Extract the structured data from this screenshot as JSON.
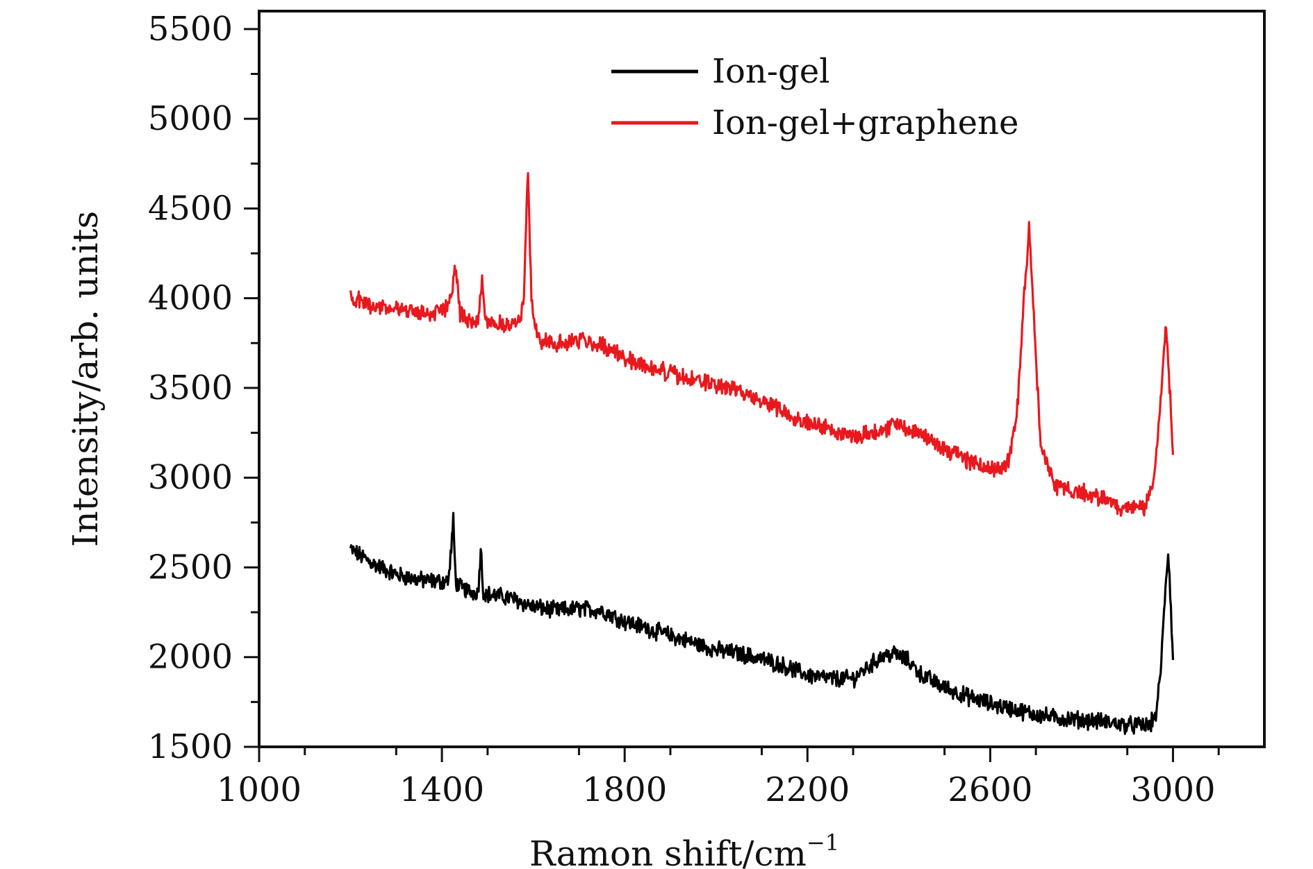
{
  "chart_data": {
    "type": "line",
    "title": "",
    "xlabel": "Ramon shift/cm",
    "xlabel_superscript": "−1",
    "ylabel": "Intensity/arb. units",
    "xlim": [
      1000,
      3200
    ],
    "ylim": [
      1500,
      5600
    ],
    "x_ticks": [
      1000,
      1400,
      1800,
      2200,
      2600,
      3000
    ],
    "y_ticks": [
      1500,
      2000,
      2500,
      3000,
      3500,
      4000,
      4500,
      5000,
      5500
    ],
    "grid": false,
    "legend_position": "top-center",
    "series": [
      {
        "name": "Ion-gel",
        "color": "#000000",
        "x": [
          1200,
          1250,
          1300,
          1350,
          1400,
          1415,
          1425,
          1430,
          1435,
          1445,
          1470,
          1480,
          1485,
          1490,
          1500,
          1550,
          1600,
          1650,
          1700,
          1750,
          1800,
          1850,
          1900,
          1950,
          2000,
          2050,
          2100,
          2150,
          2200,
          2250,
          2300,
          2330,
          2360,
          2390,
          2420,
          2450,
          2500,
          2550,
          2600,
          2650,
          2700,
          2750,
          2800,
          2850,
          2900,
          2950,
          2965,
          2975,
          2985,
          2990,
          2995,
          3000
        ],
        "y": [
          2600,
          2520,
          2460,
          2430,
          2420,
          2430,
          2760,
          2430,
          2400,
          2380,
          2360,
          2370,
          2620,
          2370,
          2350,
          2330,
          2280,
          2260,
          2270,
          2260,
          2200,
          2160,
          2120,
          2080,
          2040,
          2020,
          1990,
          1950,
          1900,
          1880,
          1880,
          1940,
          2000,
          2020,
          1980,
          1900,
          1830,
          1780,
          1740,
          1710,
          1680,
          1660,
          1650,
          1640,
          1620,
          1620,
          1700,
          2000,
          2450,
          2590,
          2300,
          1960
        ]
      },
      {
        "name": "Ion-gel+graphene",
        "color": "#e8191e",
        "x": [
          1200,
          1250,
          1300,
          1350,
          1400,
          1420,
          1430,
          1440,
          1460,
          1480,
          1488,
          1495,
          1520,
          1550,
          1570,
          1580,
          1588,
          1596,
          1610,
          1630,
          1650,
          1700,
          1750,
          1800,
          1850,
          1900,
          1950,
          2000,
          2050,
          2100,
          2150,
          2200,
          2250,
          2300,
          2350,
          2400,
          2450,
          2500,
          2550,
          2600,
          2640,
          2660,
          2675,
          2685,
          2695,
          2710,
          2740,
          2800,
          2850,
          2900,
          2940,
          2960,
          2975,
          2985,
          2993,
          3000
        ],
        "y": [
          4000,
          3960,
          3940,
          3920,
          3920,
          4000,
          4200,
          3900,
          3880,
          3880,
          4120,
          3880,
          3860,
          3850,
          3870,
          4000,
          4730,
          4000,
          3780,
          3760,
          3740,
          3770,
          3740,
          3670,
          3620,
          3580,
          3540,
          3520,
          3480,
          3430,
          3370,
          3310,
          3270,
          3230,
          3260,
          3300,
          3240,
          3160,
          3100,
          3050,
          3080,
          3400,
          4050,
          4380,
          3900,
          3200,
          2950,
          2920,
          2880,
          2820,
          2840,
          3000,
          3500,
          3850,
          3500,
          3150
        ]
      }
    ]
  }
}
